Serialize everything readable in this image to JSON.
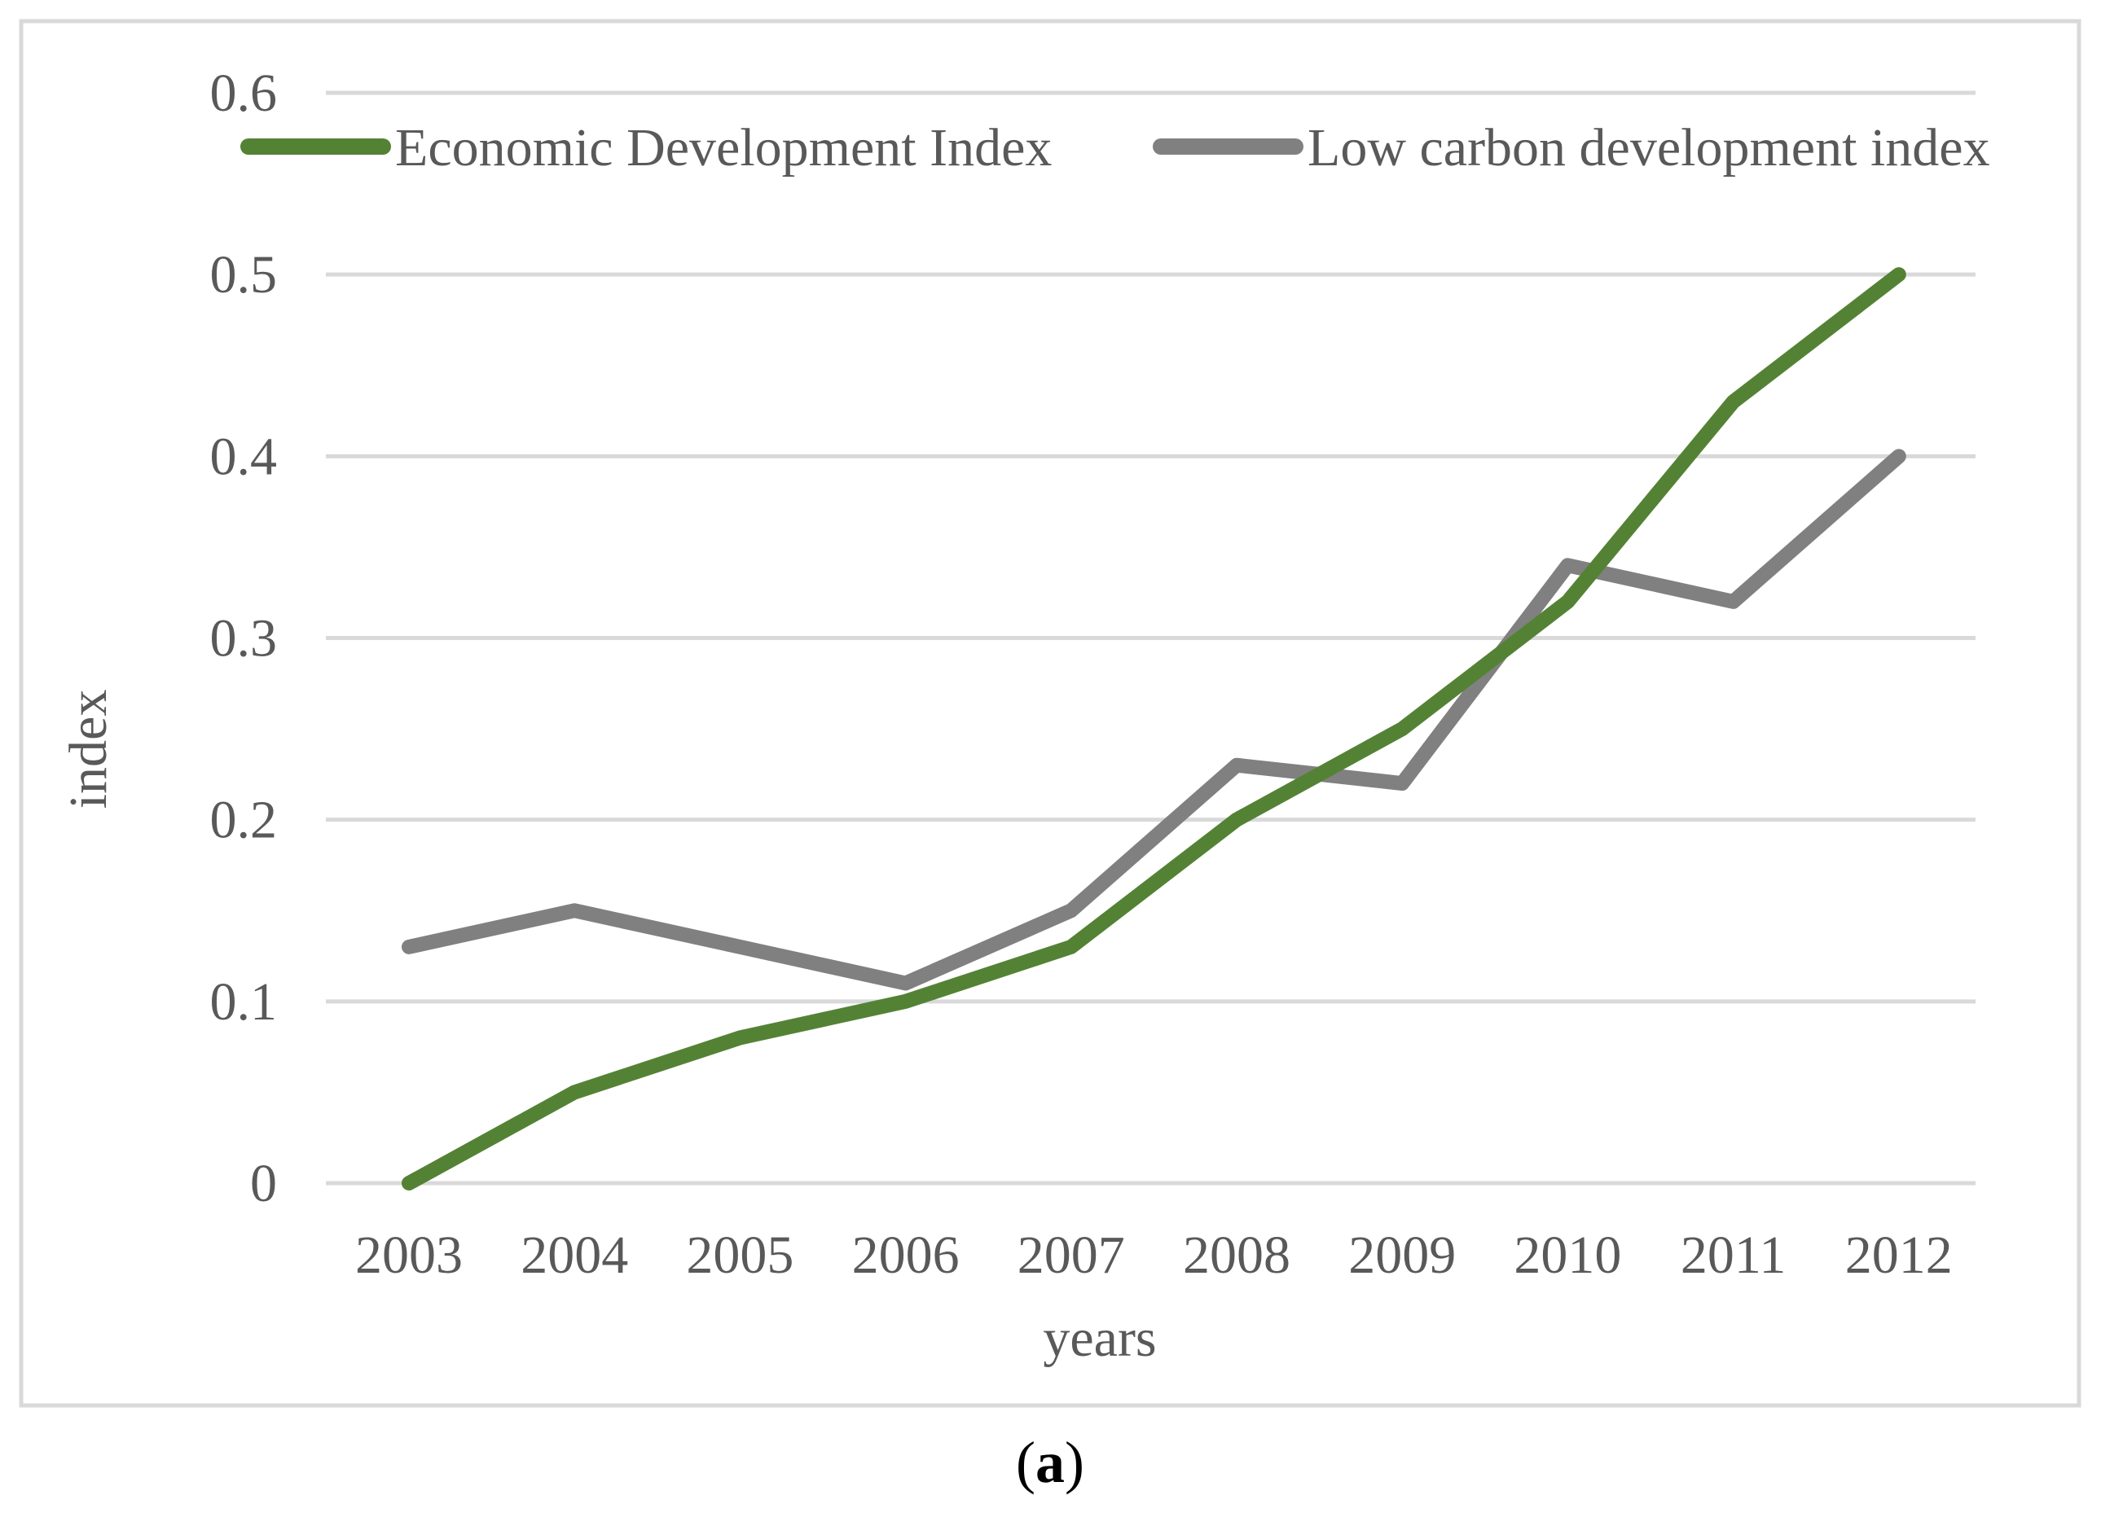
{
  "chart_data": {
    "type": "line",
    "title": "",
    "xlabel": "years",
    "ylabel": "index",
    "categories": [
      "2003",
      "2004",
      "2005",
      "2006",
      "2007",
      "2008",
      "2009",
      "2010",
      "2011",
      "2012"
    ],
    "ylim": [
      0,
      0.6
    ],
    "yticks": [
      "0",
      "0.1",
      "0.2",
      "0.3",
      "0.4",
      "0.5",
      "0.6"
    ],
    "grid": true,
    "legend_position": "top",
    "series": [
      {
        "name": "Economic Development Index",
        "color": "#548235",
        "values": [
          0.0,
          0.05,
          0.08,
          0.1,
          0.13,
          0.2,
          0.25,
          0.32,
          0.43,
          0.5
        ]
      },
      {
        "name": "Low carbon development index",
        "color": "#808080",
        "values": [
          0.13,
          0.15,
          0.13,
          0.11,
          0.15,
          0.23,
          0.22,
          0.34,
          0.32,
          0.4
        ]
      }
    ]
  },
  "caption": {
    "open": "(",
    "letter": "a",
    "close": ")"
  },
  "colors": {
    "frame": "#d9d9d9",
    "grid": "#d9d9d9",
    "text": "#595959"
  }
}
